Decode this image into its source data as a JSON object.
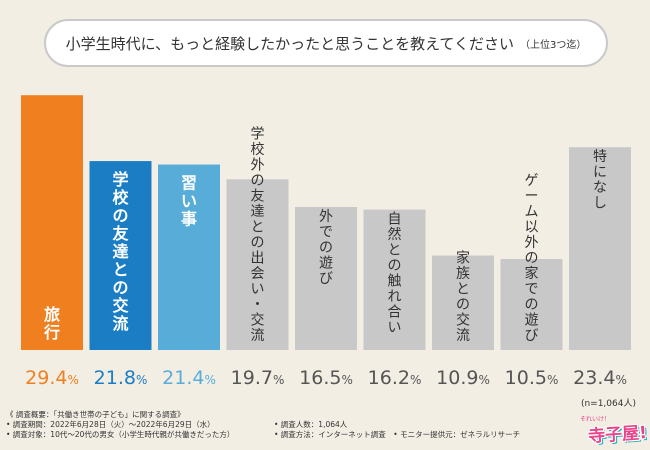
{
  "title": {
    "main": "小学生時代に、もっと経験したかったと思うことを教えてください",
    "sub": "（上位3つ迄）"
  },
  "chart_data": {
    "type": "bar",
    "title": "小学生時代に、もっと経験したかったと思うことを教えてください（上位3つ迄）",
    "categories": [
      "旅行",
      "学校の友達との交流",
      "習い事",
      "学校外の友達との出会い・交流",
      "外での遊び",
      "自然との触れ合い",
      "家族との交流",
      "ゲーム以外の家での遊び",
      "特になし"
    ],
    "values": [
      29.4,
      21.8,
      21.4,
      19.7,
      16.5,
      16.2,
      10.9,
      10.5,
      23.4
    ],
    "value_labels": [
      "29.4",
      "21.8",
      "21.4",
      "19.7",
      "16.5",
      "16.2",
      "10.9",
      "10.5",
      "23.4"
    ],
    "unit": "%",
    "colors": [
      "#f07f1f",
      "#1b7ec4",
      "#58acd8",
      "#c8c8c8",
      "#c8c8c8",
      "#c8c8c8",
      "#c8c8c8",
      "#c8c8c8",
      "#c8c8c8"
    ],
    "value_colors": [
      "#f07f1f",
      "#1b7ec4",
      "#58acd8",
      "#555555",
      "#555555",
      "#555555",
      "#555555",
      "#555555",
      "#555555"
    ],
    "ylim": [
      0,
      30
    ],
    "xlabel": "",
    "ylabel": "",
    "grid": false
  },
  "n_note": "(n=1,064人)",
  "footer": {
    "line1": "《 調査概要：「共働き世帯の子ども」に関する調査》",
    "line2a": "• 調査期間：2022年6月28日（火）〜2022年6月29日（水）",
    "line2b": "• 調査人数：1,064人",
    "line3a": "• 調査対象：10代〜20代の男女（小学生時代親が共働きだった方）",
    "line3b": "• 調査方法：インターネット調査　• モニター提供元：ゼネラルリサーチ"
  },
  "logo": {
    "sub": "それいけ！",
    "main": "寺子屋!"
  }
}
